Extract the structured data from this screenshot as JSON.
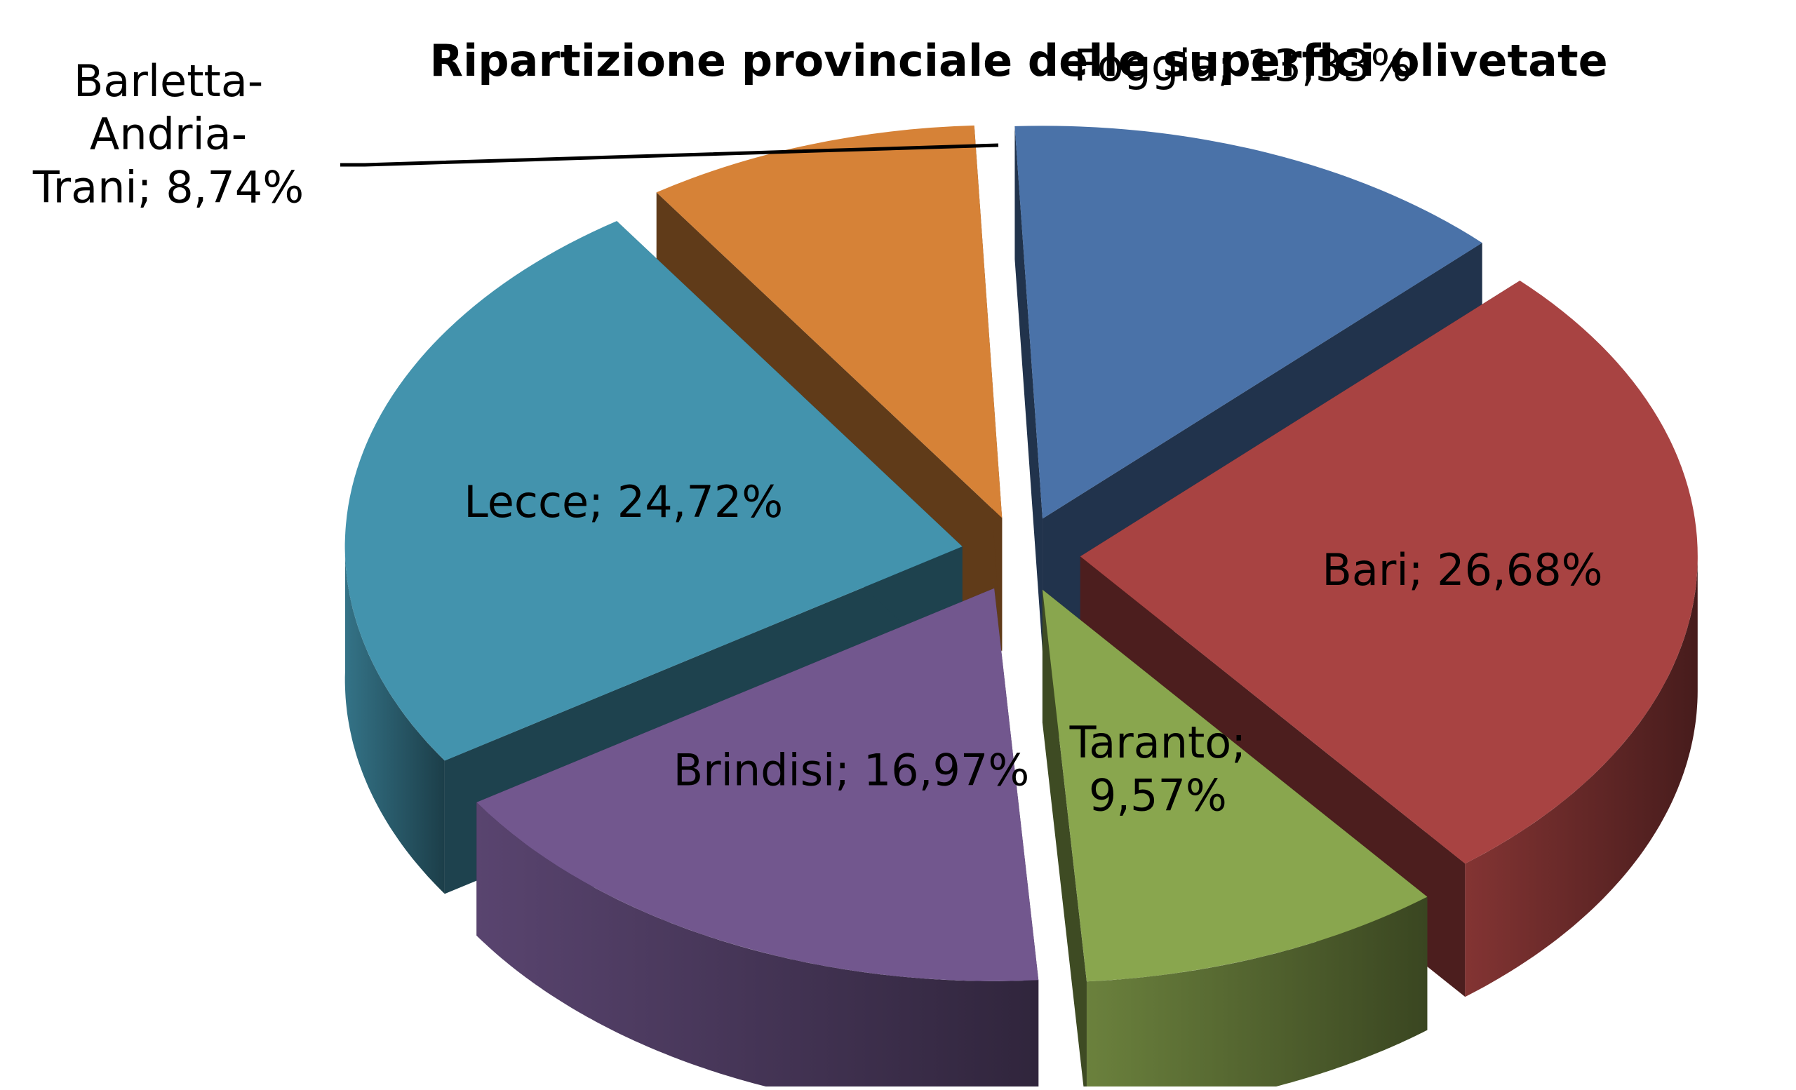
{
  "chart_data": {
    "type": "pie",
    "title": "Ripartizione provinciale delle superfici olivetate",
    "slices": [
      {
        "name": "Foggia",
        "value": 13.33,
        "label": "Foggia; 13,33%",
        "color": "#4a72a8"
      },
      {
        "name": "Bari",
        "value": 26.68,
        "label": "Bari; 26,68%",
        "color": "#a84342"
      },
      {
        "name": "Taranto",
        "value": 9.57,
        "label": "Taranto; 9,57%",
        "color": "#89a64e"
      },
      {
        "name": "Brindisi",
        "value": 16.97,
        "label": "Brindisi; 16,97%",
        "color": "#72578e"
      },
      {
        "name": "Lecce",
        "value": 24.72,
        "label": "Lecce; 24,72%",
        "color": "#4393ad"
      },
      {
        "name": "Barletta-Andria-Trani",
        "value": 8.74,
        "label": "Barletta-Andria-Trani; 8,74%",
        "color": "#d68237"
      }
    ],
    "style": "exploded 3D pie",
    "legend": "none",
    "data_labels": "category; percentage"
  }
}
